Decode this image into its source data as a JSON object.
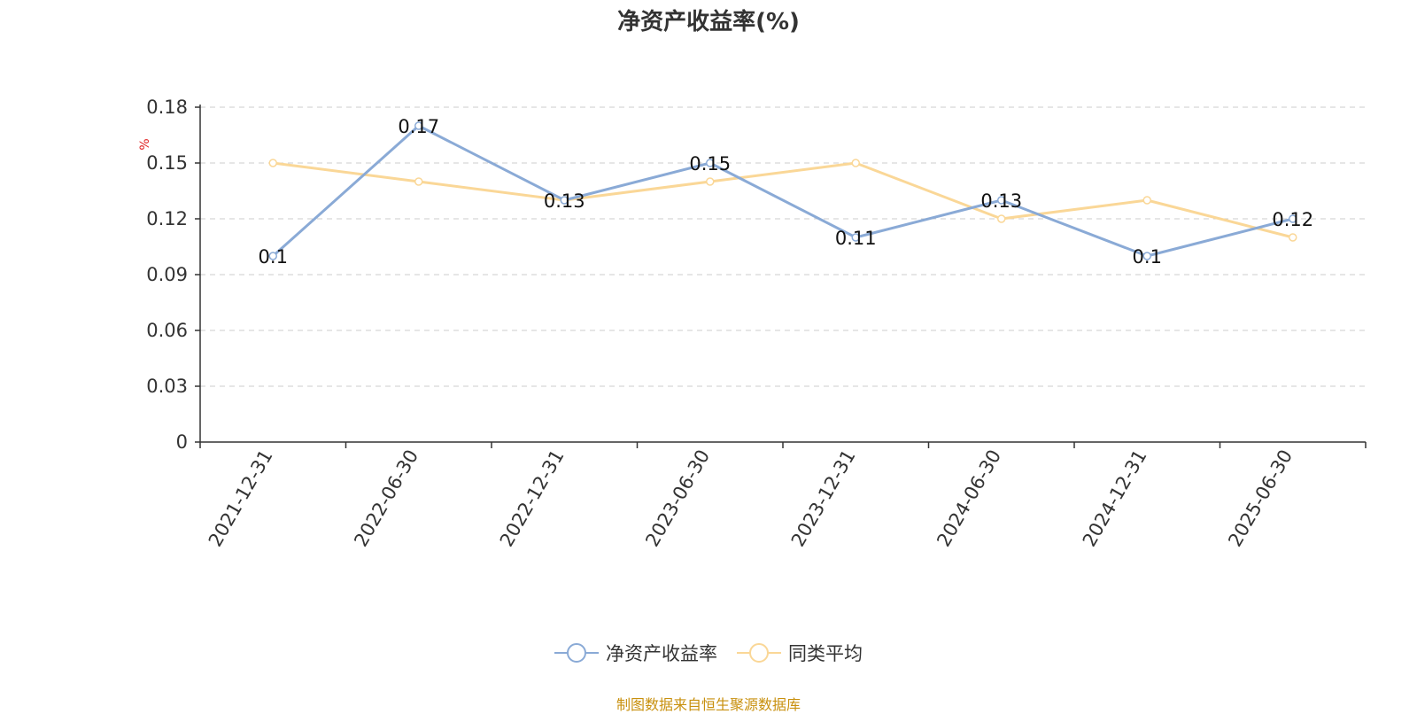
{
  "chart_data": {
    "type": "line",
    "title": "净资产收益率(%)",
    "ylabel": "%",
    "categories": [
      "2021-12-31",
      "2022-06-30",
      "2022-12-31",
      "2023-06-30",
      "2023-12-31",
      "2024-06-30",
      "2024-12-31",
      "2025-06-30"
    ],
    "yticks": [
      "0",
      "0.03",
      "0.06",
      "0.09",
      "0.12",
      "0.15",
      "0.18"
    ],
    "ylim": [
      0,
      0.18
    ],
    "grid": true,
    "legend_position": "bottom",
    "series": [
      {
        "name": "净资产收益率",
        "color": "#8aaad6",
        "values": [
          0.1,
          0.17,
          0.13,
          0.15,
          0.11,
          0.13,
          0.1,
          0.12
        ],
        "labels": [
          "0.1",
          "0.17",
          "0.13",
          "0.15",
          "0.11",
          "0.13",
          "0.1",
          "0.12"
        ]
      },
      {
        "name": "同类平均",
        "color": "#fad797",
        "values": [
          0.15,
          0.14,
          0.13,
          0.14,
          0.15,
          0.12,
          0.13,
          0.11
        ]
      }
    ]
  },
  "footer": {
    "source": "制图数据来自恒生聚源数据库"
  }
}
